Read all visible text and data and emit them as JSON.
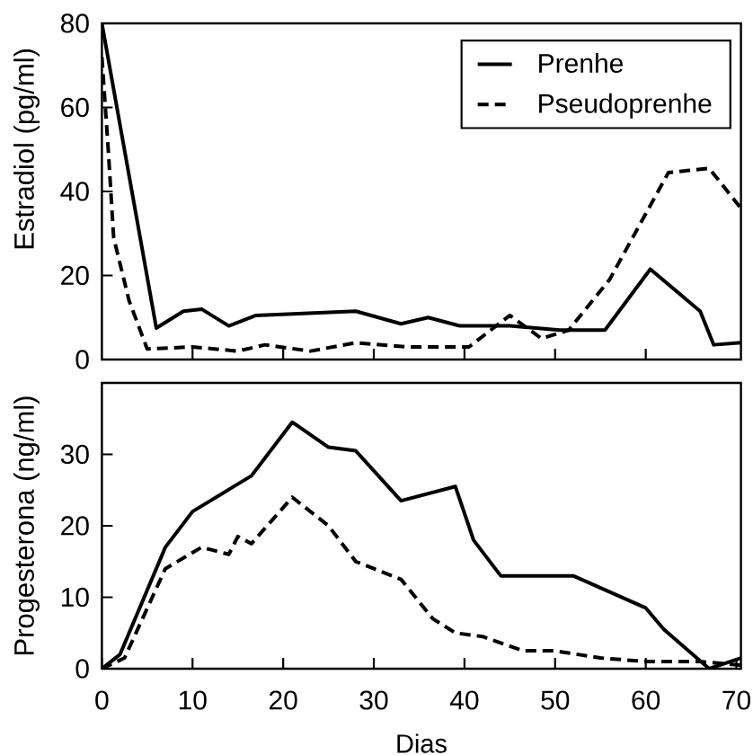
{
  "chart_data": [
    {
      "type": "line",
      "ylabel": "Estradiol (pg/ml)",
      "xlim": [
        0,
        70.5
      ],
      "xticks": [
        10,
        20,
        30,
        40,
        50,
        60
      ],
      "ylim": [
        0,
        80
      ],
      "yticks": [
        0,
        20,
        40,
        60,
        80
      ],
      "tick_labels": "y",
      "legend": "top right",
      "series": [
        {
          "name": "Prenhe",
          "color": "#000000",
          "line_style": "solid",
          "x": [
            0,
            6,
            9,
            11,
            14,
            17,
            28,
            33,
            36,
            39.5,
            45,
            50.5,
            55.5,
            60.5,
            66,
            67.5,
            70.5
          ],
          "values": [
            80,
            7.5,
            11.5,
            12,
            8,
            10.5,
            11.5,
            8.5,
            10,
            8,
            8,
            7,
            7,
            21.5,
            11.5,
            3.5,
            4
          ]
        },
        {
          "name": "Pseudoprenhe",
          "color": "#000000",
          "line_style": "dashed",
          "x": [
            0,
            0.7,
            1.3,
            3,
            5,
            10,
            15,
            18,
            23,
            28,
            33.5,
            40.5,
            45,
            48.5,
            51.5,
            56,
            62.5,
            67,
            70.5
          ],
          "values": [
            72,
            50,
            29,
            14,
            2.5,
            3,
            2,
            3.5,
            2,
            4,
            3,
            3,
            10.5,
            5,
            7,
            19,
            44.5,
            45.5,
            36
          ]
        }
      ]
    },
    {
      "type": "line",
      "xlabel": "Dias",
      "ylabel": "Progesterona (ng/ml)",
      "xlim": [
        0,
        70.5
      ],
      "xticks": [
        0,
        10,
        20,
        30,
        40,
        50,
        60,
        70
      ],
      "ylim": [
        0,
        40
      ],
      "yticks": [
        0,
        10,
        20,
        30
      ],
      "series": [
        {
          "color": "#000000",
          "line_style": "solid",
          "x": [
            0,
            2,
            7,
            10,
            16.5,
            21,
            25,
            28,
            33,
            39,
            41,
            44,
            52,
            60,
            62,
            67,
            70.5
          ],
          "values": [
            0,
            2,
            17,
            22,
            27,
            34.5,
            31,
            30.5,
            23.5,
            25.5,
            18,
            13,
            13,
            8.5,
            5.5,
            0,
            1.5
          ]
        },
        {
          "color": "#000000",
          "line_style": "dashed",
          "x": [
            0,
            2.5,
            7,
            11,
            14,
            15,
            16.5,
            21,
            25,
            28,
            30,
            33,
            36.5,
            39,
            42,
            46.5,
            50,
            55,
            60,
            66,
            70.5
          ],
          "values": [
            0,
            1.5,
            14,
            17,
            16,
            18.5,
            17.5,
            24,
            20,
            15,
            14,
            12.5,
            7,
            5,
            4.5,
            2.5,
            2.5,
            1.5,
            1,
            1,
            0.5
          ]
        }
      ]
    }
  ]
}
